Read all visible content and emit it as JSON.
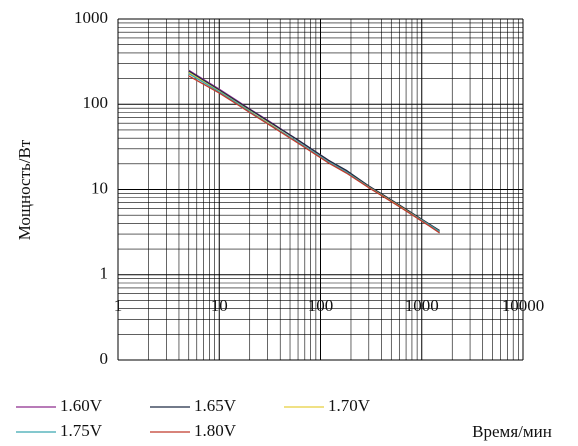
{
  "chart_data": {
    "type": "line",
    "y_label": "Мощность/Вт",
    "x_label": "Время/мин",
    "xscale": "log",
    "yscale": "log",
    "grid": true,
    "xlim": [
      1,
      10000
    ],
    "ylim": [
      0.1,
      1000
    ],
    "xticks": [
      1,
      10,
      100,
      1000,
      10000
    ],
    "yticks": [
      {
        "value": 0.1,
        "label": "0"
      },
      1,
      10,
      100,
      1000
    ],
    "x": [
      5,
      10,
      15,
      20,
      30,
      60,
      120,
      180,
      300,
      600,
      1200,
      1500
    ],
    "series": [
      {
        "name": "1.60V",
        "color": "#8e2c8e",
        "values": [
          250,
          150,
          110,
          88,
          65,
          38,
          22,
          16.5,
          11,
          6.5,
          3.9,
          3.2
        ]
      },
      {
        "name": "1.65V",
        "color": "#1f2a44",
        "values": [
          245,
          147,
          108,
          87,
          64,
          38,
          22,
          16.8,
          11,
          6.6,
          3.9,
          3.3
        ]
      },
      {
        "name": "1.70V",
        "color": "#e6cf3c",
        "values": [
          235,
          142,
          104,
          83,
          61,
          36,
          21,
          16,
          10.7,
          6.4,
          3.8,
          3.2
        ]
      },
      {
        "name": "1.75V",
        "color": "#3aa6b0",
        "values": [
          228,
          140,
          103,
          82,
          60,
          36,
          21,
          16,
          10.6,
          6.3,
          3.8,
          3.2
        ]
      },
      {
        "name": "1.80V",
        "color": "#c0392b",
        "values": [
          215,
          135,
          100,
          80,
          59,
          35,
          20.5,
          15.6,
          10.5,
          6.3,
          3.7,
          3.1
        ]
      }
    ]
  }
}
